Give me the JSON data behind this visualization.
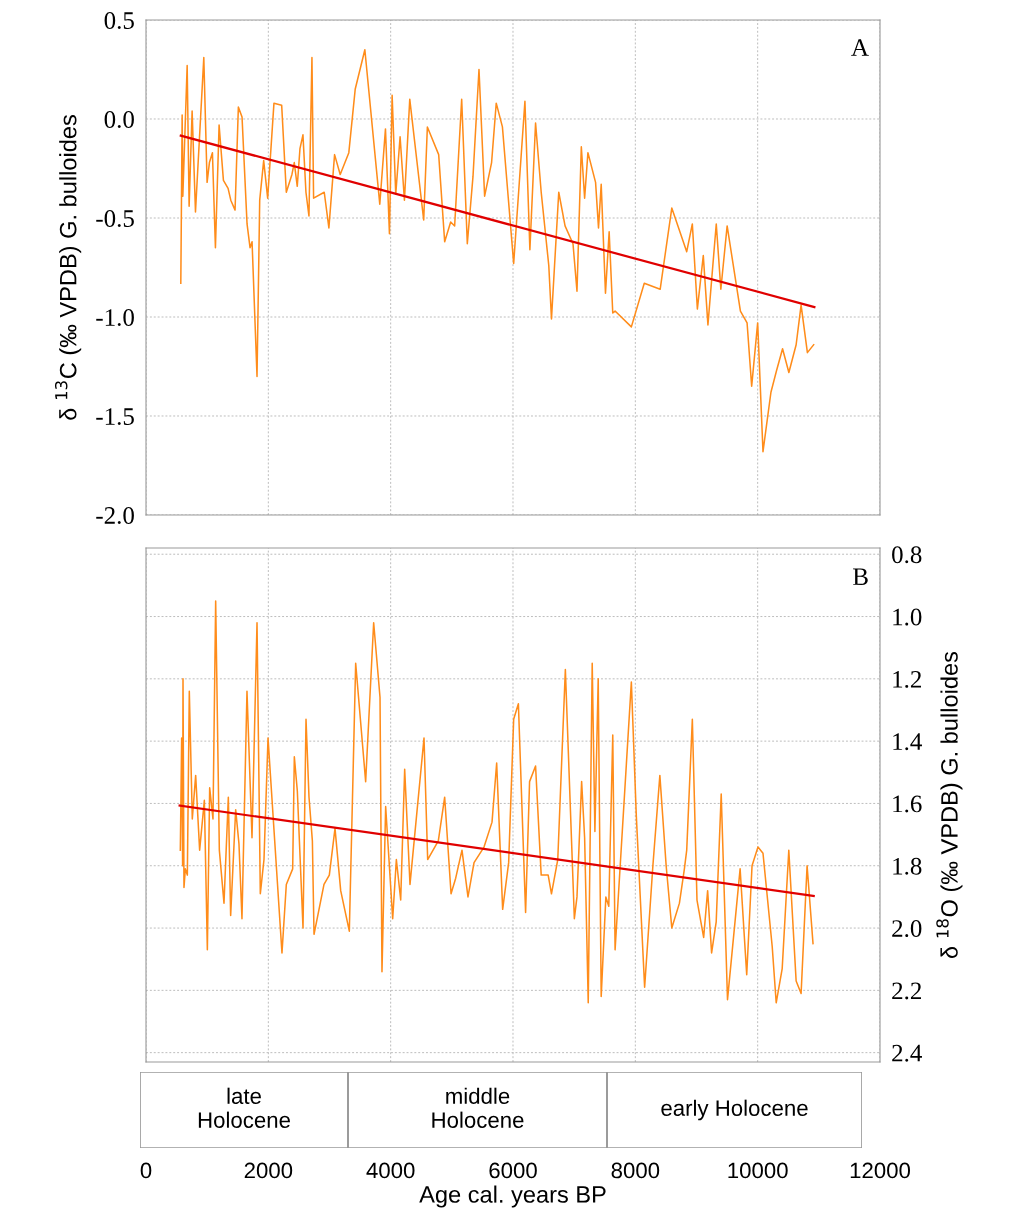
{
  "chart_data": [
    {
      "type": "line",
      "ylabel": "δ $^{13}$C (‰ VPDB) G. bulloides",
      "xlim": [
        0,
        12000
      ],
      "xticks": [
        0,
        2000,
        4000,
        6000,
        8000,
        10000,
        12000
      ],
      "ylim": [
        -2.0,
        0.5
      ],
      "yticks": [
        {
          "value": -2.0,
          "label": "-2.0"
        },
        -1.5,
        {
          "value": -1.0,
          "label": "-1.0"
        },
        -0.5,
        {
          "value": 0.0,
          "label": "0.0"
        },
        0.5
      ],
      "tick_labels": "y",
      "grid": true,
      "annotations": [
        "A"
      ],
      "series": [
        {
          "color": "#ff8c1a",
          "x": [
            569,
            591,
            602,
            673,
            705,
            754,
            809,
            945,
            999,
            1037,
            1086,
            1135,
            1195,
            1266,
            1342,
            1386,
            1456,
            1510,
            1570,
            1652,
            1701,
            1734,
            1815,
            1859,
            1924,
            1989,
            2092,
            2218,
            2294,
            2386,
            2424,
            2473,
            2517,
            2566,
            2615,
            2664,
            2713,
            2740,
            2914,
            2990,
            3083,
            3175,
            3316,
            3420,
            3578,
            3822,
            3915,
            3980,
            4024,
            4083,
            4154,
            4225,
            4312,
            4540,
            4600,
            4785,
            4883,
            4981,
            5046,
            5161,
            5253,
            5346,
            5444,
            5536,
            5650,
            5726,
            5827,
            6011,
            6195,
            6276,
            6369,
            6461,
            6585,
            6629,
            6748,
            6851,
            6981,
            7046,
            7117,
            7171,
            7225,
            7350,
            7398,
            7442,
            7512,
            7572,
            7631,
            7669,
            7935,
            8146,
            8406,
            8596,
            8840,
            8932,
            9014,
            9111,
            9187,
            9323,
            9398,
            9501,
            9718,
            9827,
            9902,
            10000,
            10087,
            10217,
            10309,
            10407,
            10510,
            10629,
            10710,
            10813,
            10916
          ],
          "values": [
            -0.83,
            0.02,
            -0.39,
            0.27,
            -0.44,
            0.04,
            -0.47,
            0.31,
            -0.32,
            -0.22,
            -0.17,
            -0.65,
            -0.03,
            -0.31,
            -0.35,
            -0.41,
            -0.46,
            0.06,
            0.01,
            -0.53,
            -0.65,
            -0.62,
            -1.3,
            -0.41,
            -0.21,
            -0.4,
            0.08,
            0.07,
            -0.37,
            -0.28,
            -0.22,
            -0.34,
            -0.15,
            -0.08,
            -0.37,
            -0.49,
            0.31,
            -0.4,
            -0.37,
            -0.55,
            -0.18,
            -0.28,
            -0.17,
            0.15,
            0.35,
            -0.43,
            -0.05,
            -0.58,
            0.12,
            -0.38,
            -0.09,
            -0.41,
            0.1,
            -0.51,
            -0.04,
            -0.18,
            -0.62,
            -0.52,
            -0.54,
            0.1,
            -0.63,
            -0.29,
            0.25,
            -0.39,
            -0.22,
            0.08,
            -0.04,
            -0.73,
            0.09,
            -0.66,
            -0.02,
            -0.37,
            -0.74,
            -1.01,
            -0.37,
            -0.54,
            -0.63,
            -0.87,
            -0.14,
            -0.4,
            -0.17,
            -0.32,
            -0.55,
            -0.33,
            -0.88,
            -0.57,
            -0.98,
            -0.97,
            -1.05,
            -0.83,
            -0.86,
            -0.45,
            -0.67,
            -0.53,
            -0.96,
            -0.69,
            -1.04,
            -0.53,
            -0.86,
            -0.54,
            -0.97,
            -1.03,
            -1.35,
            -1.03,
            -1.68,
            -1.38,
            -1.27,
            -1.16,
            -1.28,
            -1.14,
            -0.94,
            -1.18,
            -1.14
          ]
        },
        {
          "color": "#e00000",
          "x": [
            569,
            10927
          ],
          "values": [
            -0.084,
            -0.95
          ]
        }
      ]
    },
    {
      "type": "line",
      "ylabel": "δ $^{18}$O (‰ VPDB) G. bulloides",
      "xlabel": "Age cal. years BP",
      "xlim": [
        0,
        12000
      ],
      "xticks": [
        0,
        2000,
        4000,
        6000,
        8000,
        10000,
        12000
      ],
      "ylim": [
        2.43,
        0.78
      ],
      "yticks": [
        0.8,
        {
          "value": 1.0,
          "label": "1.0"
        },
        1.2,
        1.4,
        1.6,
        1.8,
        {
          "value": 2.0,
          "label": "2.0"
        },
        2.2,
        2.4
      ],
      "grid": true,
      "annotations": [
        "B"
      ],
      "series": [
        {
          "color": "#ff8c1a",
          "x": [
            561,
            583,
            599,
            605,
            621,
            643,
            676,
            708,
            757,
            812,
            877,
            954,
            1003,
            1041,
            1095,
            1139,
            1199,
            1275,
            1346,
            1384,
            1466,
            1520,
            1569,
            1651,
            1733,
            1815,
            1869,
            1929,
            1995,
            2223,
            2294,
            2398,
            2425,
            2474,
            2567,
            2616,
            2665,
            2720,
            2747,
            2910,
            2997,
            3090,
            3183,
            3324,
            3428,
            3591,
            3722,
            3826,
            3858,
            3918,
            4033,
            4093,
            4164,
            4229,
            4316,
            4545,
            4605,
            4779,
            4883,
            4987,
            5063,
            5166,
            5264,
            5363,
            5526,
            5657,
            5733,
            5831,
            5929,
            6011,
            6088,
            6206,
            6271,
            6369,
            6461,
            6575,
            6629,
            6732,
            6856,
            7003,
            7046,
            7122,
            7171,
            7230,
            7295,
            7339,
            7393,
            7442,
            7518,
            7566,
            7631,
            7669,
            7935,
            8016,
            8152,
            8287,
            8401,
            8504,
            8596,
            8721,
            8802,
            8840,
            8932,
            9008,
            9117,
            9182,
            9247,
            9322,
            9404,
            9507,
            9713,
            9821,
            9908,
            10005,
            10087,
            10238,
            10303,
            10401,
            10509,
            10629,
            10710,
            10808,
            10905
          ],
          "values": [
            1.75,
            1.39,
            1.8,
            1.2,
            1.87,
            1.81,
            1.83,
            1.24,
            1.65,
            1.51,
            1.75,
            1.59,
            2.07,
            1.55,
            1.65,
            0.95,
            1.75,
            1.92,
            1.58,
            1.96,
            1.62,
            1.73,
            1.97,
            1.24,
            1.71,
            1.02,
            1.89,
            1.78,
            1.39,
            2.08,
            1.86,
            1.81,
            1.45,
            1.56,
            2.0,
            1.33,
            1.58,
            1.72,
            2.02,
            1.86,
            1.83,
            1.68,
            1.88,
            2.01,
            1.15,
            1.53,
            1.02,
            1.26,
            2.14,
            1.61,
            1.97,
            1.78,
            1.91,
            1.49,
            1.86,
            1.39,
            1.78,
            1.72,
            1.58,
            1.89,
            1.84,
            1.75,
            1.9,
            1.79,
            1.74,
            1.66,
            1.47,
            1.94,
            1.79,
            1.33,
            1.28,
            1.95,
            1.53,
            1.48,
            1.83,
            1.83,
            1.89,
            1.78,
            1.17,
            1.97,
            1.9,
            1.53,
            1.71,
            2.24,
            1.15,
            1.69,
            1.2,
            2.22,
            1.9,
            1.93,
            1.38,
            2.07,
            1.21,
            1.64,
            2.19,
            1.8,
            1.51,
            1.8,
            2.0,
            1.92,
            1.81,
            1.75,
            1.33,
            1.91,
            2.03,
            1.88,
            2.08,
            1.98,
            1.57,
            2.23,
            1.81,
            2.15,
            1.8,
            1.74,
            1.76,
            2.06,
            2.24,
            2.13,
            1.75,
            2.17,
            2.21,
            1.8,
            2.05
          ]
        },
        {
          "color": "#e00000",
          "x": [
            550,
            10916
          ],
          "values": [
            1.607,
            1.897
          ]
        }
      ]
    },
    {
      "type": "other",
      "annotations": [
        "late\nHolocene",
        "middle\nHolocene",
        "early Holocene"
      ]
    }
  ]
}
